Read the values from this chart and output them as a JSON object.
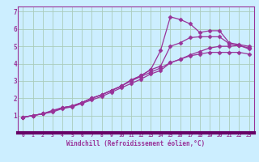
{
  "xlabel": "Windchill (Refroidissement éolien,°C)",
  "bg_color": "#cceeff",
  "plot_bg_color": "#cceeff",
  "grid_color": "#aaccbb",
  "line_color": "#993399",
  "axis_color": "#660066",
  "xlim": [
    -0.5,
    23.5
  ],
  "ylim": [
    0,
    7.3
  ],
  "xticks": [
    0,
    1,
    2,
    3,
    4,
    5,
    6,
    7,
    8,
    9,
    10,
    11,
    12,
    13,
    14,
    15,
    16,
    17,
    18,
    19,
    20,
    21,
    22,
    23
  ],
  "yticks": [
    1,
    2,
    3,
    4,
    5,
    6,
    7
  ],
  "series": [
    [
      0.9,
      1.0,
      1.1,
      1.3,
      1.45,
      1.55,
      1.75,
      2.0,
      2.2,
      2.45,
      2.7,
      3.0,
      3.25,
      3.5,
      3.75,
      4.05,
      4.25,
      4.45,
      4.55,
      4.65,
      4.65,
      4.65,
      4.65,
      4.55
    ],
    [
      0.9,
      1.0,
      1.1,
      1.2,
      1.4,
      1.5,
      1.7,
      1.9,
      2.1,
      2.35,
      2.6,
      2.85,
      3.1,
      3.4,
      3.6,
      4.05,
      4.25,
      4.5,
      4.7,
      4.9,
      5.0,
      5.0,
      5.05,
      4.9
    ],
    [
      0.9,
      1.0,
      1.1,
      1.25,
      1.45,
      1.55,
      1.75,
      2.0,
      2.2,
      2.45,
      2.7,
      3.05,
      3.3,
      3.65,
      4.75,
      6.7,
      6.55,
      6.3,
      5.8,
      5.9,
      5.9,
      5.2,
      5.1,
      5.0
    ],
    [
      0.9,
      1.0,
      1.1,
      1.25,
      1.45,
      1.55,
      1.75,
      2.0,
      2.2,
      2.45,
      2.7,
      3.05,
      3.3,
      3.65,
      3.85,
      5.0,
      5.2,
      5.5,
      5.55,
      5.55,
      5.55,
      5.15,
      5.05,
      4.85
    ]
  ],
  "marker": "D",
  "marker_size": 2.5,
  "linewidth": 0.9
}
